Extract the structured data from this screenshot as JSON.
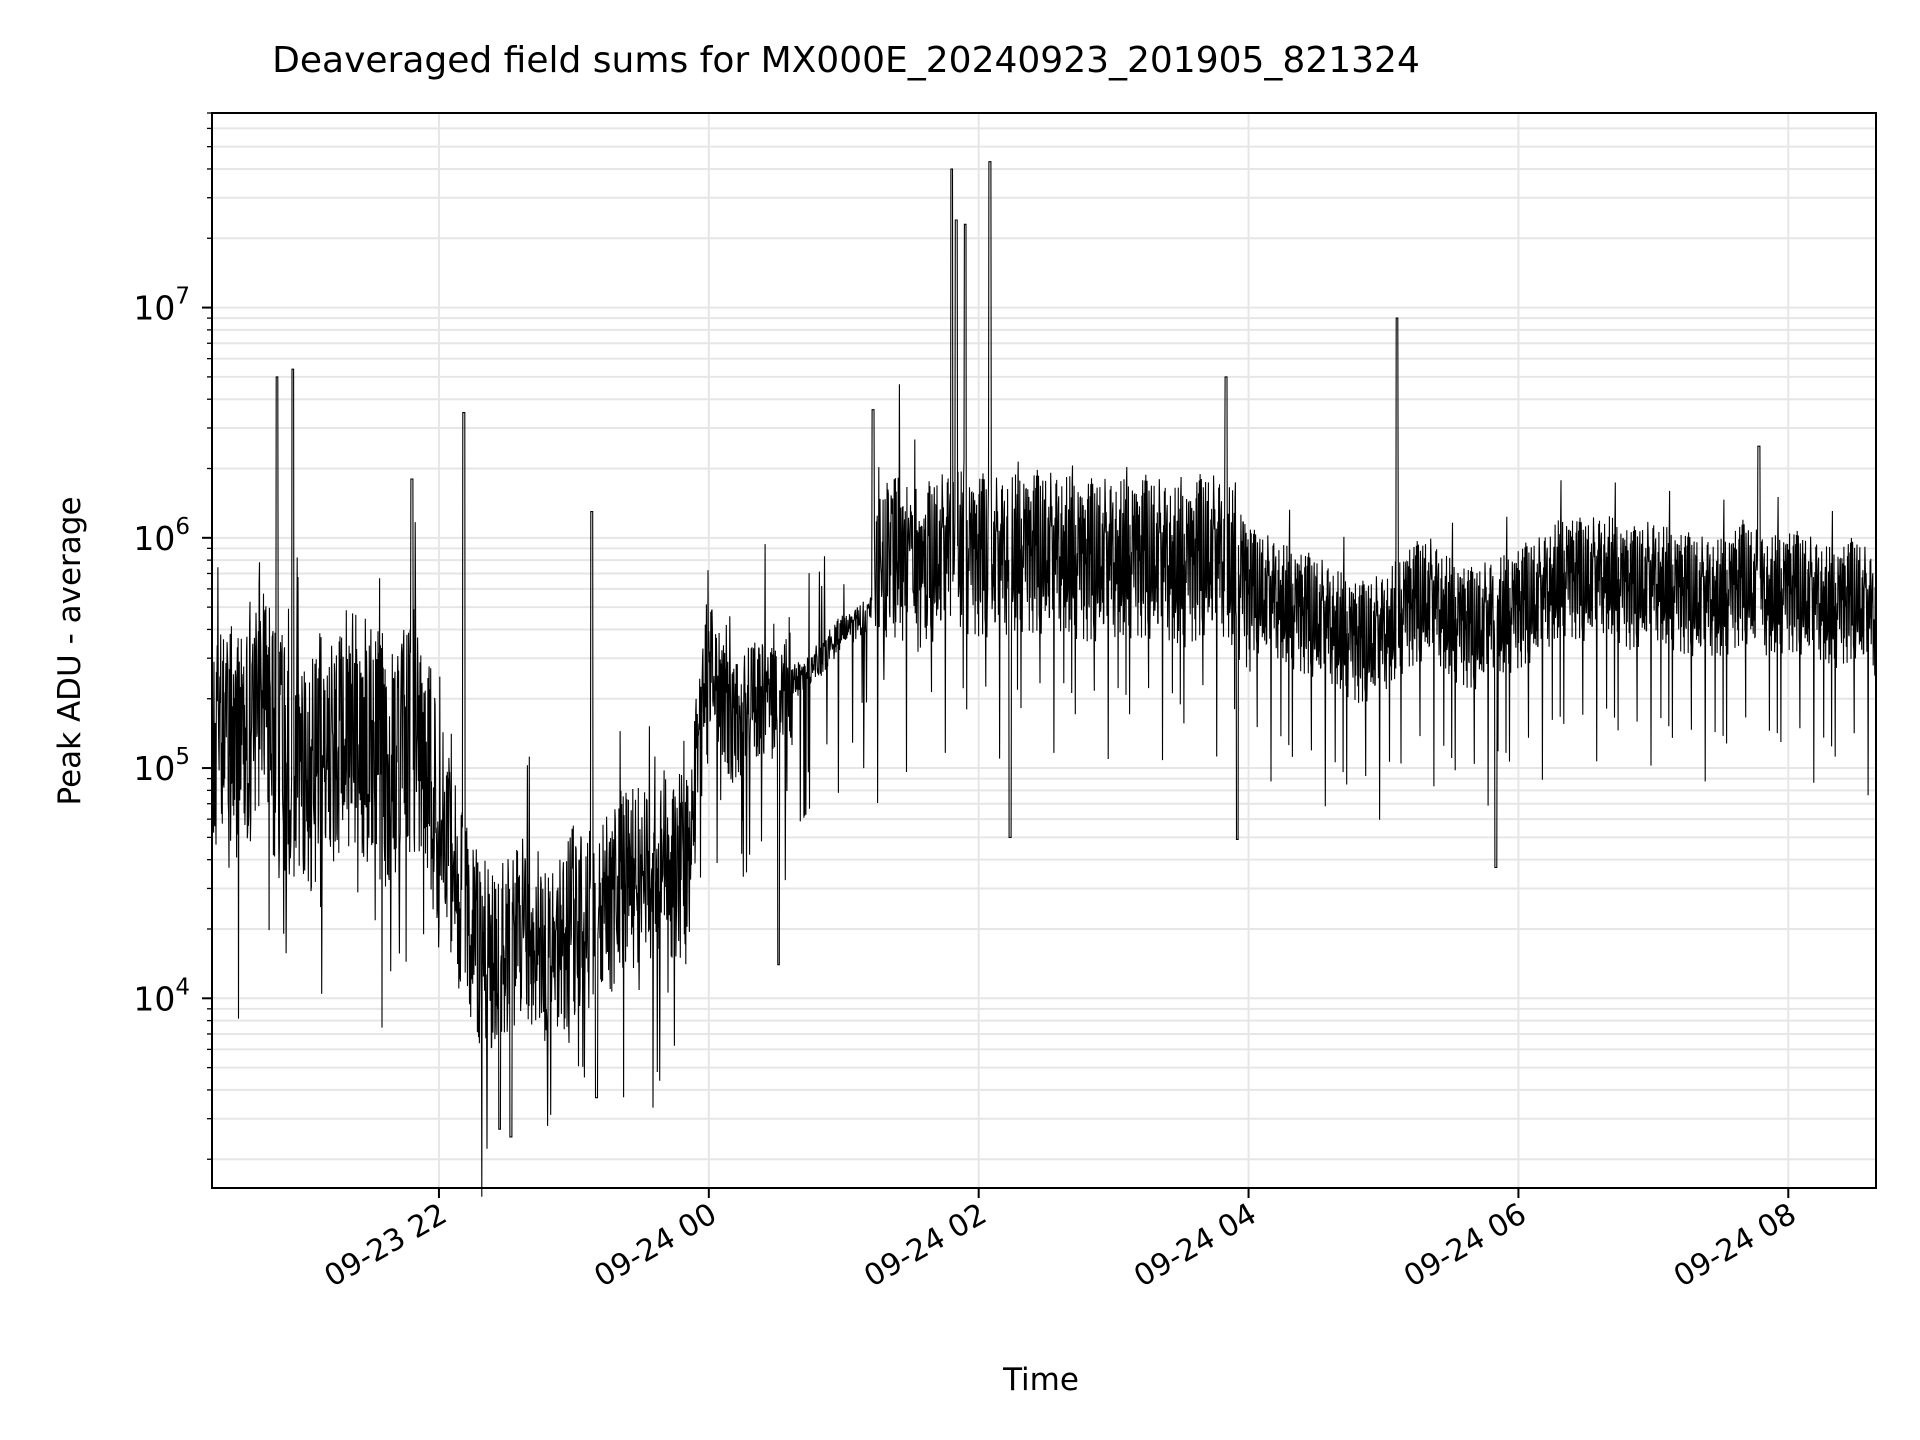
{
  "chart_data": {
    "type": "line",
    "title": "Deaveraged field sums for MX000E_20240923_201905_821324",
    "xlabel": "Time",
    "ylabel": "Peak ADU - average",
    "x_axis": {
      "kind": "datetime",
      "range": [
        "2024-09-23T20:19:05",
        "2024-09-24T08:39:00"
      ],
      "ticks": [
        {
          "value": "2024-09-23T22:00",
          "label": "09-23 22"
        },
        {
          "value": "2024-09-24T00:00",
          "label": "09-24 00"
        },
        {
          "value": "2024-09-24T02:00",
          "label": "09-24 02"
        },
        {
          "value": "2024-09-24T04:00",
          "label": "09-24 04"
        },
        {
          "value": "2024-09-24T06:00",
          "label": "09-24 06"
        },
        {
          "value": "2024-09-24T08:00",
          "label": "09-24 08"
        }
      ]
    },
    "y_axis": {
      "scale": "log",
      "range": [
        1500,
        70000000
      ],
      "ticks": [
        {
          "value": 10000,
          "base": "10",
          "exp": "4"
        },
        {
          "value": 100000,
          "base": "10",
          "exp": "5"
        },
        {
          "value": 1000000,
          "base": "10",
          "exp": "6"
        },
        {
          "value": 10000000,
          "base": "10",
          "exp": "7"
        }
      ]
    },
    "grid": true,
    "line_color": "#000000",
    "series": [
      {
        "x": [
          "2024-09-23T20:20",
          "2024-09-23T20:30",
          "2024-09-23T20:40",
          "2024-09-23T20:50",
          "2024-09-23T21:00",
          "2024-09-23T21:10",
          "2024-09-23T21:20",
          "2024-09-23T21:30",
          "2024-09-23T21:40",
          "2024-09-23T21:50",
          "2024-09-23T22:00",
          "2024-09-23T22:10",
          "2024-09-23T22:20",
          "2024-09-23T22:30",
          "2024-09-23T22:40",
          "2024-09-23T22:50",
          "2024-09-23T23:00",
          "2024-09-23T23:10",
          "2024-09-23T23:20",
          "2024-09-23T23:30",
          "2024-09-23T23:40",
          "2024-09-23T23:50",
          "2024-09-24T00:00",
          "2024-09-24T00:10",
          "2024-09-24T00:20",
          "2024-09-24T00:30",
          "2024-09-24T00:40",
          "2024-09-24T00:50",
          "2024-09-24T01:00",
          "2024-09-24T01:10",
          "2024-09-24T01:20",
          "2024-09-24T01:30",
          "2024-09-24T01:40",
          "2024-09-24T01:50",
          "2024-09-24T02:00",
          "2024-09-24T02:10",
          "2024-09-24T02:20",
          "2024-09-24T02:30",
          "2024-09-24T02:40",
          "2024-09-24T02:50",
          "2024-09-24T03:00",
          "2024-09-24T03:10",
          "2024-09-24T03:20",
          "2024-09-24T03:30",
          "2024-09-24T03:40",
          "2024-09-24T03:50",
          "2024-09-24T04:00",
          "2024-09-24T04:10",
          "2024-09-24T04:20",
          "2024-09-24T04:30",
          "2024-09-24T04:40",
          "2024-09-24T04:50",
          "2024-09-24T05:00",
          "2024-09-24T05:10",
          "2024-09-24T05:20",
          "2024-09-24T05:30",
          "2024-09-24T05:40",
          "2024-09-24T05:50",
          "2024-09-24T06:00",
          "2024-09-24T06:10",
          "2024-09-24T06:20",
          "2024-09-24T06:30",
          "2024-09-24T06:40",
          "2024-09-24T06:50",
          "2024-09-24T07:00",
          "2024-09-24T07:10",
          "2024-09-24T07:20",
          "2024-09-24T07:30",
          "2024-09-24T07:40",
          "2024-09-24T07:50",
          "2024-09-24T08:00",
          "2024-09-24T08:10",
          "2024-09-24T08:20",
          "2024-09-24T08:30",
          "2024-09-24T08:38"
        ],
        "y": [
          150000,
          120000,
          180000,
          110000,
          90000,
          130000,
          160000,
          120000,
          100000,
          150000,
          70000,
          25000,
          15000,
          18000,
          20000,
          15000,
          22000,
          20000,
          30000,
          35000,
          40000,
          35000,
          300000,
          150000,
          200000,
          180000,
          250000,
          300000,
          400000,
          450000,
          900000,
          700000,
          800000,
          900000,
          850000,
          800000,
          900000,
          850000,
          850000,
          800000,
          800000,
          850000,
          800000,
          750000,
          850000,
          800000,
          600000,
          550000,
          500000,
          450000,
          400000,
          350000,
          380000,
          500000,
          550000,
          450000,
          400000,
          450000,
          500000,
          550000,
          700000,
          650000,
          700000,
          600000,
          650000,
          600000,
          550000,
          550000,
          650000,
          550000,
          600000,
          550000,
          500000,
          550000,
          450000
        ],
        "spikes": [
          {
            "x": "2024-09-23T20:48",
            "y": 5000000
          },
          {
            "x": "2024-09-23T20:55",
            "y": 5400000
          },
          {
            "x": "2024-09-23T21:48",
            "y": 1800000
          },
          {
            "x": "2024-09-23T22:11",
            "y": 3500000
          },
          {
            "x": "2024-09-23T22:27",
            "y": 2700
          },
          {
            "x": "2024-09-23T22:32",
            "y": 2500
          },
          {
            "x": "2024-09-23T23:08",
            "y": 1300000
          },
          {
            "x": "2024-09-23T23:10",
            "y": 3700
          },
          {
            "x": "2024-09-24T00:31",
            "y": 14000
          },
          {
            "x": "2024-09-24T01:13",
            "y": 3600000
          },
          {
            "x": "2024-09-24T01:48",
            "y": 40000000
          },
          {
            "x": "2024-09-24T01:50",
            "y": 24000000
          },
          {
            "x": "2024-09-24T01:54",
            "y": 23000000
          },
          {
            "x": "2024-09-24T02:05",
            "y": 43000000
          },
          {
            "x": "2024-09-24T02:14",
            "y": 50000
          },
          {
            "x": "2024-09-24T03:50",
            "y": 5000000
          },
          {
            "x": "2024-09-24T03:55",
            "y": 49000
          },
          {
            "x": "2024-09-24T05:06",
            "y": 9000000
          },
          {
            "x": "2024-09-24T05:50",
            "y": 37000
          },
          {
            "x": "2024-09-24T07:47",
            "y": 2500000
          }
        ]
      }
    ]
  }
}
